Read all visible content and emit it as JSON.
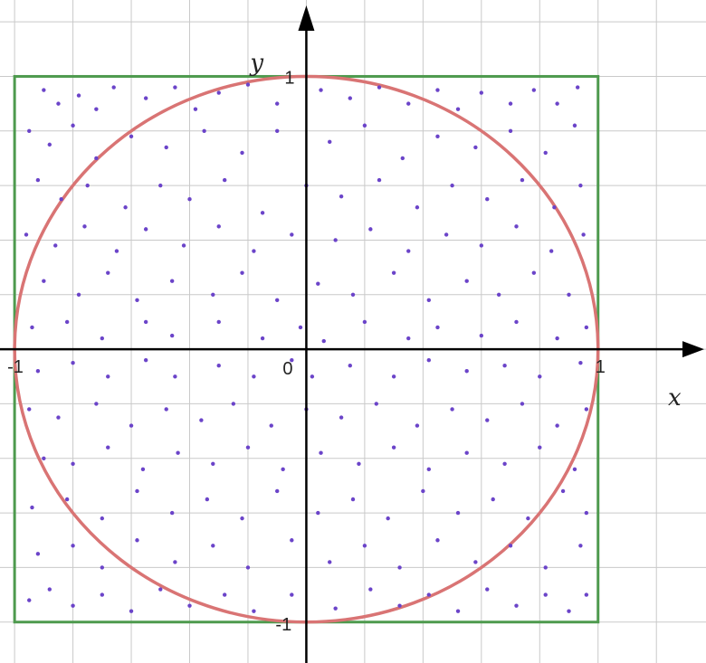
{
  "chart_data": {
    "type": "scatter",
    "title": "",
    "xlabel": "x",
    "ylabel": "y",
    "xlim": [
      -1.05,
      1.37
    ],
    "ylim": [
      -1.15,
      1.28
    ],
    "grid": true,
    "grid_step": 0.2,
    "tick_labels": {
      "origin": "0",
      "x_min": "-1",
      "x_max": "1",
      "y_max": "1",
      "y_min": "-1"
    },
    "square": {
      "x": [
        -1,
        1
      ],
      "y": [
        -1,
        1
      ],
      "color": "#4e9a4e"
    },
    "circle": {
      "center": [
        0,
        0
      ],
      "radius": 1,
      "color": "#d97474"
    },
    "points_color": "#6b44c9",
    "points": [
      [
        -0.9,
        0.95
      ],
      [
        -0.85,
        0.9
      ],
      [
        -0.78,
        0.93
      ],
      [
        -0.72,
        0.88
      ],
      [
        -0.66,
        0.96
      ],
      [
        -0.55,
        0.92
      ],
      [
        -0.45,
        0.96
      ],
      [
        -0.38,
        0.88
      ],
      [
        -0.3,
        0.94
      ],
      [
        -0.2,
        0.97
      ],
      [
        -0.1,
        0.9
      ],
      [
        0.05,
        0.95
      ],
      [
        0.15,
        0.92
      ],
      [
        0.25,
        0.96
      ],
      [
        0.35,
        0.9
      ],
      [
        0.45,
        0.95
      ],
      [
        0.52,
        0.88
      ],
      [
        0.6,
        0.94
      ],
      [
        0.7,
        0.9
      ],
      [
        0.78,
        0.95
      ],
      [
        0.86,
        0.9
      ],
      [
        0.93,
        0.96
      ],
      [
        -0.95,
        0.8
      ],
      [
        -0.88,
        0.75
      ],
      [
        -0.8,
        0.82
      ],
      [
        -0.72,
        0.7
      ],
      [
        -0.6,
        0.78
      ],
      [
        -0.48,
        0.74
      ],
      [
        -0.35,
        0.8
      ],
      [
        -0.22,
        0.72
      ],
      [
        -0.1,
        0.8
      ],
      [
        0.08,
        0.76
      ],
      [
        0.2,
        0.82
      ],
      [
        0.33,
        0.7
      ],
      [
        0.45,
        0.78
      ],
      [
        0.58,
        0.74
      ],
      [
        0.7,
        0.8
      ],
      [
        0.82,
        0.72
      ],
      [
        0.92,
        0.82
      ],
      [
        -0.92,
        0.62
      ],
      [
        -0.84,
        0.55
      ],
      [
        -0.75,
        0.6
      ],
      [
        -0.62,
        0.52
      ],
      [
        -0.5,
        0.6
      ],
      [
        -0.4,
        0.55
      ],
      [
        -0.28,
        0.62
      ],
      [
        -0.15,
        0.5
      ],
      [
        0.0,
        0.6
      ],
      [
        0.12,
        0.56
      ],
      [
        0.25,
        0.62
      ],
      [
        0.38,
        0.52
      ],
      [
        0.5,
        0.6
      ],
      [
        0.62,
        0.55
      ],
      [
        0.74,
        0.62
      ],
      [
        0.85,
        0.52
      ],
      [
        0.94,
        0.6
      ],
      [
        -0.96,
        0.42
      ],
      [
        -0.86,
        0.38
      ],
      [
        -0.76,
        0.45
      ],
      [
        -0.65,
        0.36
      ],
      [
        -0.55,
        0.44
      ],
      [
        -0.42,
        0.38
      ],
      [
        -0.3,
        0.45
      ],
      [
        -0.18,
        0.36
      ],
      [
        -0.05,
        0.42
      ],
      [
        0.1,
        0.4
      ],
      [
        0.22,
        0.44
      ],
      [
        0.35,
        0.36
      ],
      [
        0.48,
        0.42
      ],
      [
        0.6,
        0.38
      ],
      [
        0.72,
        0.45
      ],
      [
        0.84,
        0.36
      ],
      [
        0.95,
        0.42
      ],
      [
        -0.9,
        0.25
      ],
      [
        -0.78,
        0.2
      ],
      [
        -0.68,
        0.28
      ],
      [
        -0.58,
        0.18
      ],
      [
        -0.46,
        0.25
      ],
      [
        -0.32,
        0.2
      ],
      [
        -0.22,
        0.28
      ],
      [
        -0.1,
        0.18
      ],
      [
        0.04,
        0.24
      ],
      [
        0.16,
        0.2
      ],
      [
        0.3,
        0.28
      ],
      [
        0.42,
        0.18
      ],
      [
        0.55,
        0.25
      ],
      [
        0.66,
        0.2
      ],
      [
        0.78,
        0.28
      ],
      [
        0.9,
        0.2
      ],
      [
        -0.94,
        0.08
      ],
      [
        -0.82,
        0.1
      ],
      [
        -0.7,
        0.04
      ],
      [
        -0.55,
        0.1
      ],
      [
        -0.46,
        0.05
      ],
      [
        -0.3,
        0.1
      ],
      [
        -0.15,
        0.04
      ],
      [
        -0.02,
        0.08
      ],
      [
        0.06,
        0.03
      ],
      [
        0.2,
        0.1
      ],
      [
        0.35,
        0.04
      ],
      [
        0.45,
        0.08
      ],
      [
        0.6,
        0.05
      ],
      [
        0.72,
        0.1
      ],
      [
        0.86,
        0.04
      ],
      [
        0.96,
        0.08
      ],
      [
        -0.92,
        -0.08
      ],
      [
        -0.8,
        -0.05
      ],
      [
        -0.68,
        -0.1
      ],
      [
        -0.55,
        -0.04
      ],
      [
        -0.45,
        -0.1
      ],
      [
        -0.3,
        -0.06
      ],
      [
        -0.18,
        -0.1
      ],
      [
        -0.05,
        -0.04
      ],
      [
        0.02,
        -0.1
      ],
      [
        0.15,
        -0.06
      ],
      [
        0.3,
        -0.1
      ],
      [
        0.42,
        -0.04
      ],
      [
        0.55,
        -0.08
      ],
      [
        0.68,
        -0.06
      ],
      [
        0.8,
        -0.1
      ],
      [
        0.94,
        -0.05
      ],
      [
        -0.95,
        -0.22
      ],
      [
        -0.85,
        -0.25
      ],
      [
        -0.72,
        -0.2
      ],
      [
        -0.6,
        -0.28
      ],
      [
        -0.48,
        -0.22
      ],
      [
        -0.36,
        -0.26
      ],
      [
        -0.25,
        -0.2
      ],
      [
        -0.12,
        -0.28
      ],
      [
        0.0,
        -0.22
      ],
      [
        0.12,
        -0.25
      ],
      [
        0.24,
        -0.2
      ],
      [
        0.38,
        -0.28
      ],
      [
        0.5,
        -0.22
      ],
      [
        0.62,
        -0.26
      ],
      [
        0.74,
        -0.2
      ],
      [
        0.86,
        -0.28
      ],
      [
        0.96,
        -0.22
      ],
      [
        -0.9,
        -0.4
      ],
      [
        -0.8,
        -0.42
      ],
      [
        -0.68,
        -0.36
      ],
      [
        -0.56,
        -0.44
      ],
      [
        -0.44,
        -0.38
      ],
      [
        -0.32,
        -0.42
      ],
      [
        -0.2,
        -0.36
      ],
      [
        -0.08,
        -0.44
      ],
      [
        0.05,
        -0.38
      ],
      [
        0.18,
        -0.42
      ],
      [
        0.3,
        -0.36
      ],
      [
        0.42,
        -0.44
      ],
      [
        0.55,
        -0.38
      ],
      [
        0.68,
        -0.42
      ],
      [
        0.8,
        -0.36
      ],
      [
        0.92,
        -0.44
      ],
      [
        -0.94,
        -0.58
      ],
      [
        -0.82,
        -0.55
      ],
      [
        -0.7,
        -0.62
      ],
      [
        -0.58,
        -0.52
      ],
      [
        -0.46,
        -0.6
      ],
      [
        -0.34,
        -0.55
      ],
      [
        -0.22,
        -0.62
      ],
      [
        -0.1,
        -0.52
      ],
      [
        0.04,
        -0.6
      ],
      [
        0.16,
        -0.55
      ],
      [
        0.28,
        -0.62
      ],
      [
        0.4,
        -0.52
      ],
      [
        0.52,
        -0.6
      ],
      [
        0.64,
        -0.55
      ],
      [
        0.76,
        -0.62
      ],
      [
        0.88,
        -0.52
      ],
      [
        0.96,
        -0.6
      ],
      [
        -0.92,
        -0.75
      ],
      [
        -0.8,
        -0.72
      ],
      [
        -0.7,
        -0.8
      ],
      [
        -0.58,
        -0.7
      ],
      [
        -0.45,
        -0.78
      ],
      [
        -0.32,
        -0.72
      ],
      [
        -0.2,
        -0.8
      ],
      [
        -0.05,
        -0.7
      ],
      [
        0.08,
        -0.78
      ],
      [
        0.2,
        -0.72
      ],
      [
        0.32,
        -0.8
      ],
      [
        0.45,
        -0.7
      ],
      [
        0.58,
        -0.78
      ],
      [
        0.7,
        -0.72
      ],
      [
        0.82,
        -0.8
      ],
      [
        0.94,
        -0.72
      ],
      [
        -0.95,
        -0.92
      ],
      [
        -0.88,
        -0.88
      ],
      [
        -0.8,
        -0.94
      ],
      [
        -0.7,
        -0.9
      ],
      [
        -0.6,
        -0.96
      ],
      [
        -0.5,
        -0.88
      ],
      [
        -0.4,
        -0.94
      ],
      [
        -0.28,
        -0.9
      ],
      [
        -0.18,
        -0.96
      ],
      [
        -0.05,
        -0.9
      ],
      [
        0.1,
        -0.95
      ],
      [
        0.22,
        -0.88
      ],
      [
        0.32,
        -0.94
      ],
      [
        0.42,
        -0.9
      ],
      [
        0.52,
        -0.96
      ],
      [
        0.62,
        -0.88
      ],
      [
        0.72,
        -0.94
      ],
      [
        0.82,
        -0.9
      ],
      [
        0.9,
        -0.96
      ],
      [
        0.96,
        -0.9
      ]
    ]
  }
}
